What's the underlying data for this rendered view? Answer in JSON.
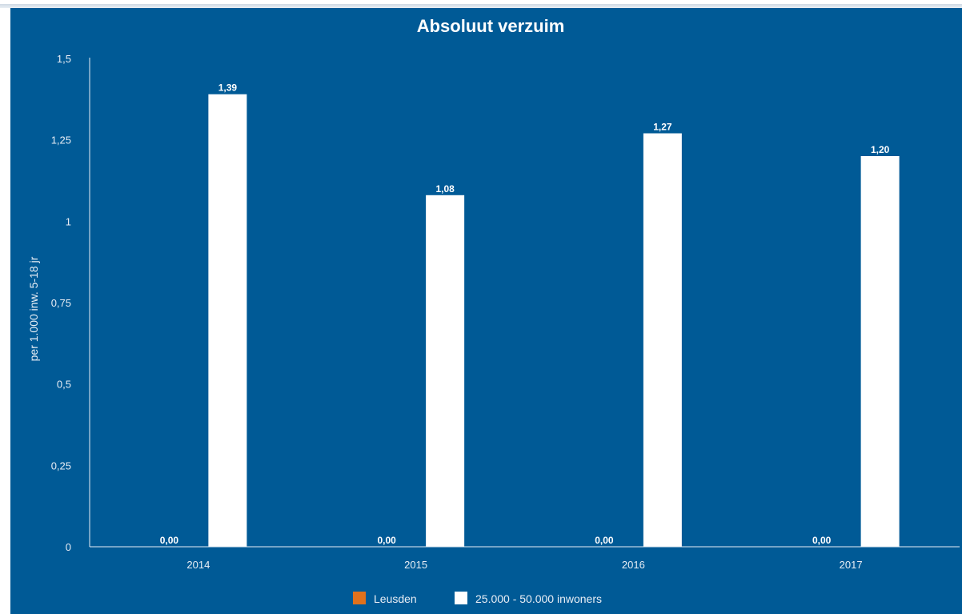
{
  "chart_data": {
    "type": "bar",
    "title": "Absoluut verzuim",
    "xlabel": "",
    "ylabel": "per 1.000 inw. 5-18 jr",
    "categories": [
      "2014",
      "2015",
      "2016",
      "2017"
    ],
    "ylim": [
      0,
      1.5
    ],
    "yticks": [
      0,
      0.25,
      0.5,
      0.75,
      1,
      1.25,
      1.5
    ],
    "ytick_labels": [
      "0",
      "0,25",
      "0,5",
      "0,75",
      "1",
      "1,25",
      "1,5"
    ],
    "grid": false,
    "legend_position": "bottom-center",
    "series": [
      {
        "name": "Leusden",
        "color": "#e0711c",
        "values": [
          0,
          0,
          0,
          0
        ],
        "labels": [
          "0,00",
          "0,00",
          "0,00",
          "0,00"
        ]
      },
      {
        "name": "25.000 - 50.000 inwoners",
        "color": "#ffffff",
        "values": [
          1.39,
          1.08,
          1.27,
          1.2
        ],
        "labels": [
          "1,39",
          "1,08",
          "1,27",
          "1,20"
        ]
      }
    ]
  }
}
